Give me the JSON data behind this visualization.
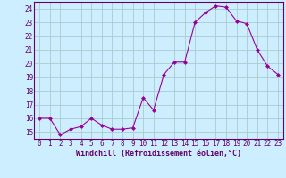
{
  "x": [
    0,
    1,
    2,
    3,
    4,
    5,
    6,
    7,
    8,
    9,
    10,
    11,
    12,
    13,
    14,
    15,
    16,
    17,
    18,
    19,
    20,
    21,
    22,
    23
  ],
  "y": [
    16.0,
    16.0,
    14.8,
    15.2,
    15.4,
    16.0,
    15.5,
    15.2,
    15.2,
    15.3,
    17.5,
    16.6,
    19.2,
    20.1,
    20.1,
    23.0,
    23.7,
    24.2,
    24.1,
    23.1,
    22.9,
    21.0,
    19.8,
    19.2
  ],
  "line_color": "#990099",
  "marker": "D",
  "marker_size": 2.0,
  "bg_color": "#cceeff",
  "grid_color": "#aacccc",
  "xlabel": "Windchill (Refroidissement éolien,°C)",
  "ylabel_ticks": [
    15,
    16,
    17,
    18,
    19,
    20,
    21,
    22,
    23,
    24
  ],
  "xlim": [
    -0.5,
    23.5
  ],
  "ylim": [
    14.5,
    24.5
  ],
  "tick_fontsize": 5.5,
  "label_fontsize": 6.0
}
